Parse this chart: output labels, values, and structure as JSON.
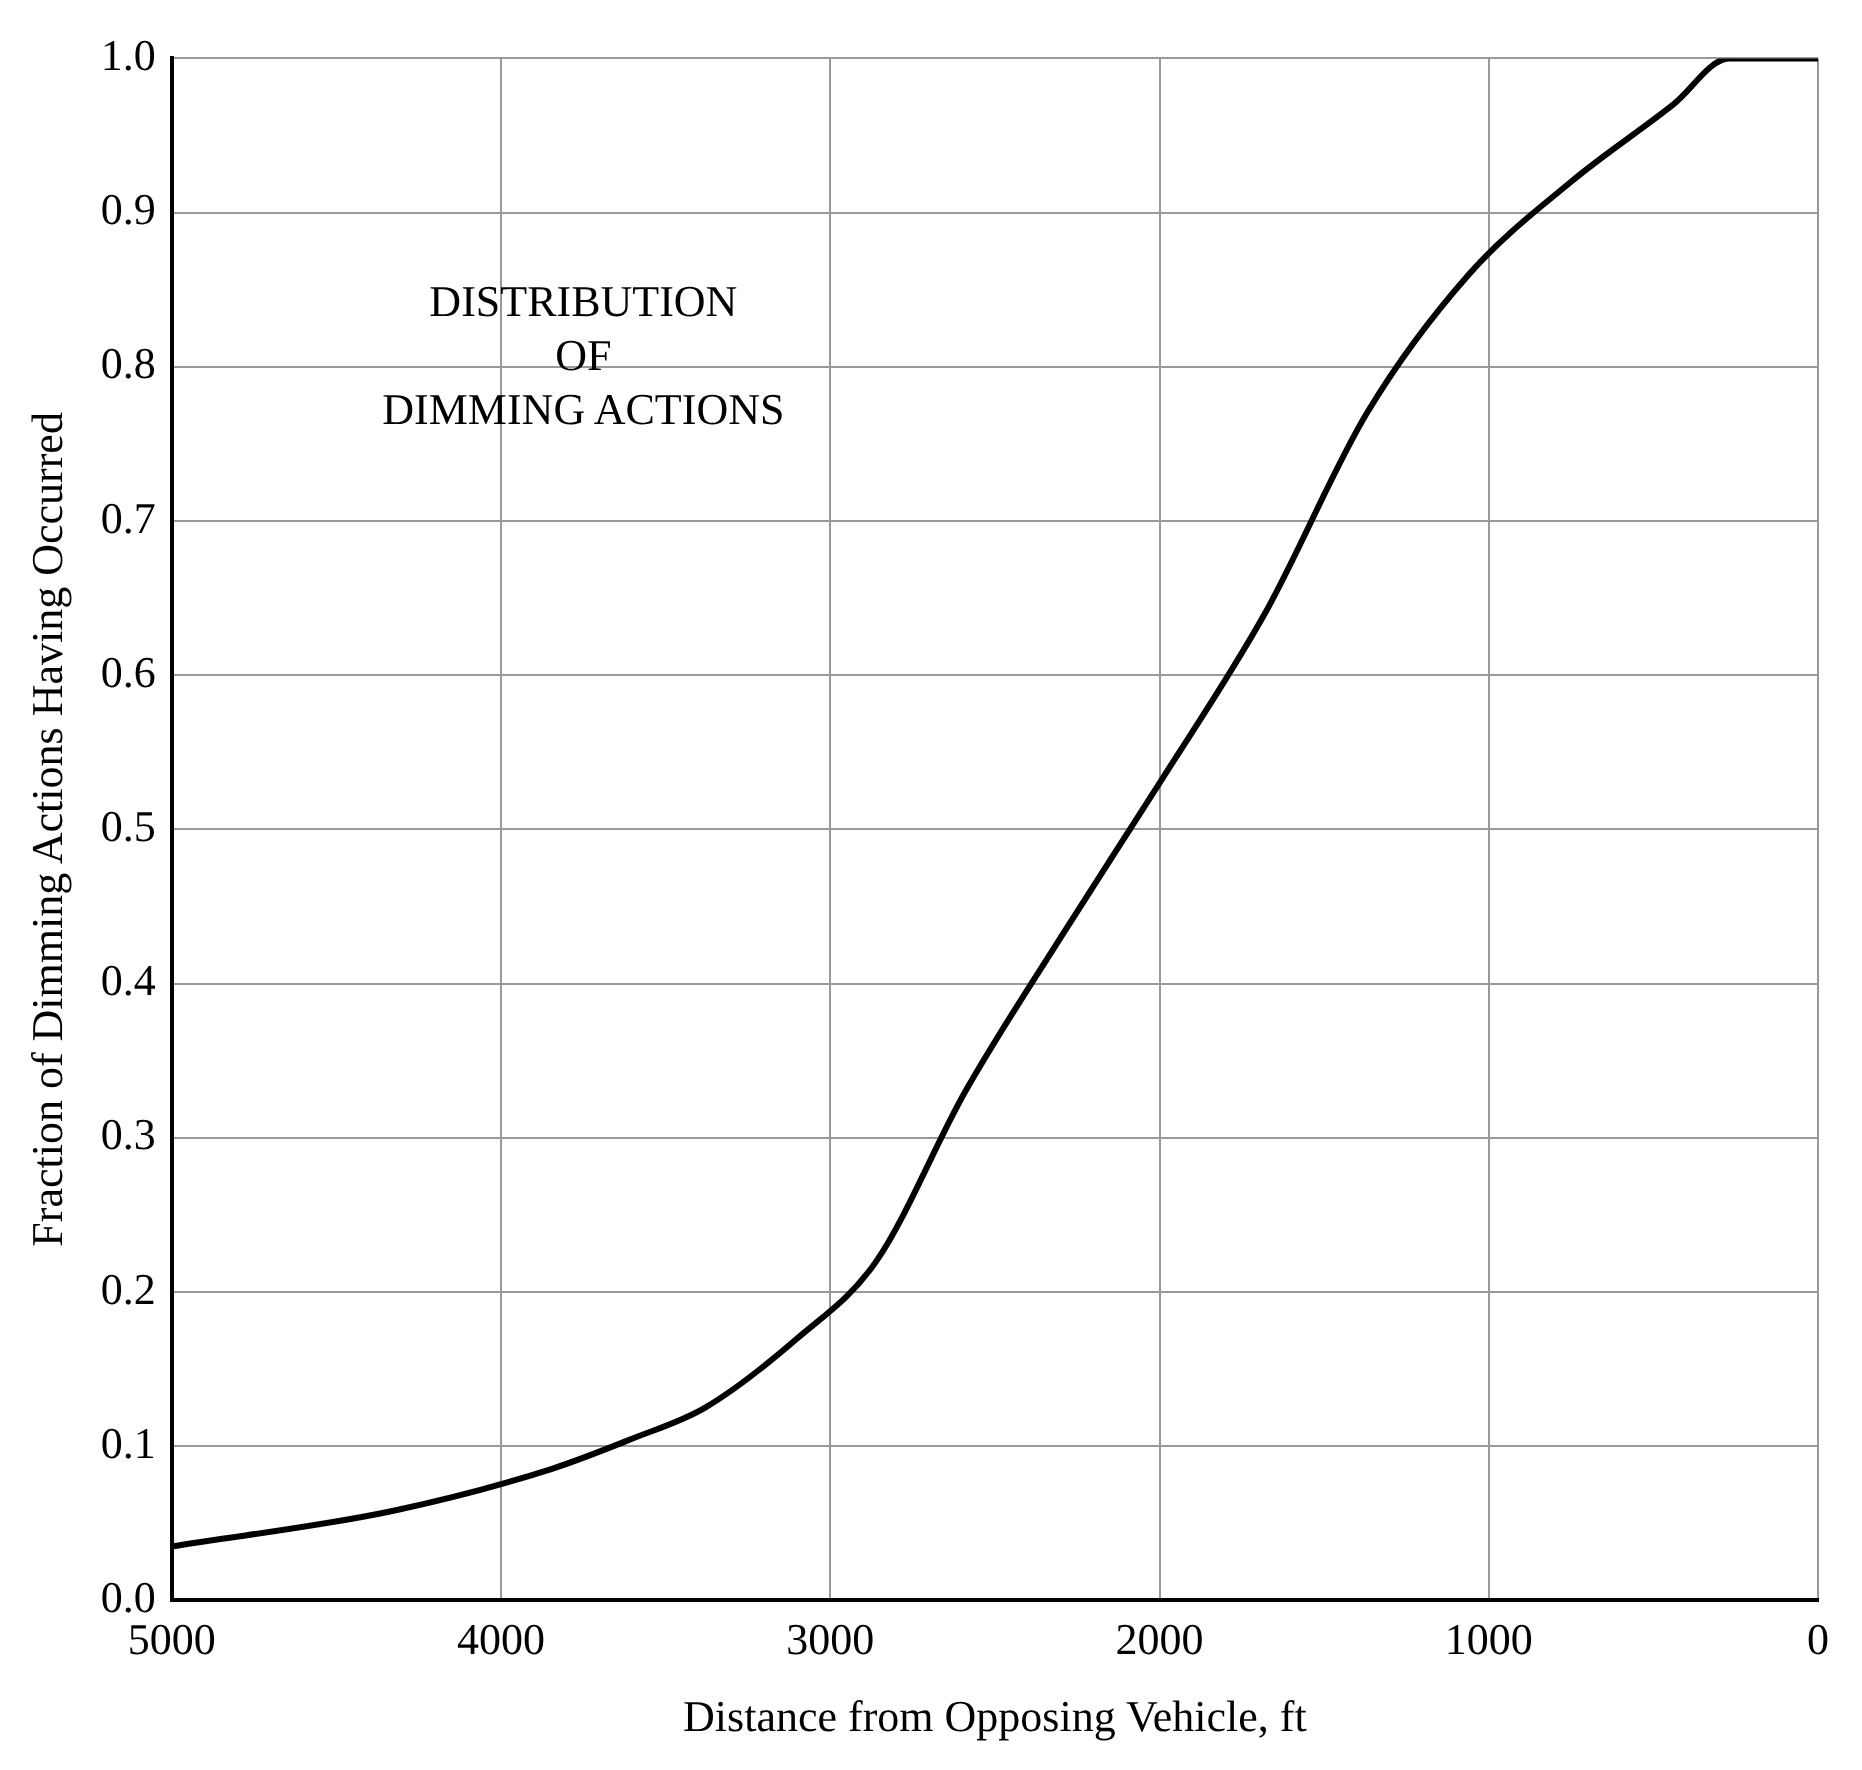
{
  "chart_data": {
    "type": "line",
    "xlabel": "Distance from Opposing Vehicle, ft",
    "ylabel": "Fraction of Dimming Actions Having Occurred",
    "annotations": [
      "DISTRIBUTION\nOF\nDIMMING ACTIONS"
    ],
    "x": [
      5000,
      4330,
      3850,
      3600,
      3380,
      3100,
      2860,
      2590,
      2300,
      2000,
      1680,
      1370,
      1060,
      750,
      440,
      270,
      0
    ],
    "series": [
      {
        "color": "#000000",
        "values": [
          0.035,
          0.058,
          0.085,
          0.105,
          0.125,
          0.17,
          0.22,
          0.33,
          0.43,
          0.53,
          0.64,
          0.77,
          0.86,
          0.92,
          0.97,
          1.0,
          1.0
        ]
      }
    ],
    "xlim": [
      5000,
      0
    ],
    "ylim": [
      0,
      1
    ],
    "xticks": [
      5000,
      4000,
      3000,
      2000,
      1000,
      0
    ],
    "yticks": [
      {
        "value": 0,
        "label": "0.0"
      },
      {
        "value": 0.1,
        "label": "0.1"
      },
      {
        "value": 0.2,
        "label": "0.2"
      },
      {
        "value": 0.3,
        "label": "0.3"
      },
      {
        "value": 0.4,
        "label": "0.4"
      },
      {
        "value": 0.5,
        "label": "0.5"
      },
      {
        "value": 0.6,
        "label": "0.6"
      },
      {
        "value": 0.7,
        "label": "0.7"
      },
      {
        "value": 0.8,
        "label": "0.8"
      },
      {
        "value": 0.9,
        "label": "0.9"
      },
      {
        "value": 1,
        "label": "1.0"
      }
    ],
    "grid": true,
    "line_style": "solid",
    "marker": "none"
  }
}
